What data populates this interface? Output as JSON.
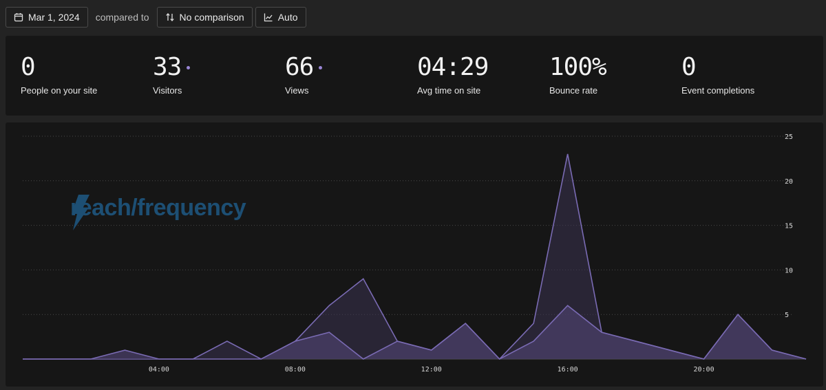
{
  "toolbar": {
    "date_label": "Mar 1, 2024",
    "compared_label": "compared to",
    "comparison_label": "No comparison",
    "interval_label": "Auto"
  },
  "stats": [
    {
      "value": "0",
      "label": "People on your site",
      "dot": false
    },
    {
      "value": "33",
      "label": "Visitors",
      "dot": true
    },
    {
      "value": "66",
      "label": "Views",
      "dot": true
    },
    {
      "value": "04:29",
      "label": "Avg time on site",
      "dot": false
    },
    {
      "value": "100%",
      "label": "Bounce rate",
      "dot": false
    },
    {
      "value": "0",
      "label": "Event completions",
      "dot": false
    }
  ],
  "watermark": {
    "text": "reach/frequency"
  },
  "colors": {
    "series_line": "#7a6bb4",
    "series_fill": "#3a3350",
    "accent_dot": "#9a86d6"
  },
  "chart_data": {
    "type": "area",
    "x_ticks": [
      "04:00",
      "08:00",
      "12:00",
      "16:00",
      "20:00"
    ],
    "y_ticks": [
      5,
      10,
      15,
      20,
      25
    ],
    "ylim": [
      0,
      25
    ],
    "x": [
      "00:00",
      "01:00",
      "02:00",
      "03:00",
      "04:00",
      "05:00",
      "06:00",
      "07:00",
      "08:00",
      "09:00",
      "10:00",
      "11:00",
      "12:00",
      "13:00",
      "14:00",
      "15:00",
      "16:00",
      "17:00",
      "18:00",
      "19:00",
      "20:00",
      "21:00",
      "22:00",
      "23:00"
    ],
    "series": [
      {
        "values": [
          0,
          0,
          0,
          0,
          0,
          0,
          2,
          0,
          2,
          6,
          9,
          2,
          1,
          4,
          0,
          4,
          23,
          3,
          2,
          1,
          0,
          5,
          1,
          0
        ]
      },
      {
        "values": [
          0,
          0,
          0,
          1,
          0,
          0,
          0,
          0,
          2,
          3,
          0,
          2,
          1,
          4,
          0,
          2,
          6,
          3,
          2,
          1,
          0,
          5,
          1,
          0
        ]
      }
    ]
  }
}
